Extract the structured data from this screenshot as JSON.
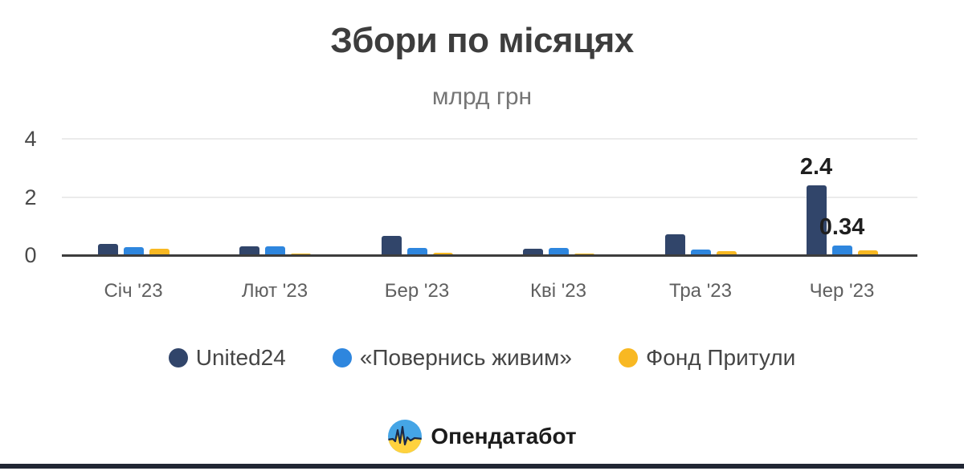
{
  "title": "Збори по місяцях",
  "subtitle": "млрд грн",
  "chart_data": {
    "type": "bar",
    "categories": [
      "Січ '23",
      "Лют '23",
      "Бер '23",
      "Кві '23",
      "Тра '23",
      "Чер '23"
    ],
    "series": [
      {
        "name": "United24",
        "color": "#31456a",
        "values": [
          0.38,
          0.3,
          0.66,
          0.22,
          0.72,
          2.4
        ]
      },
      {
        "name": "«Повернись живим»",
        "color": "#2e86de",
        "values": [
          0.27,
          0.3,
          0.25,
          0.25,
          0.2,
          0.34
        ]
      },
      {
        "name": "Фонд Притули",
        "color": "#f8b822",
        "values": [
          0.22,
          0.05,
          0.07,
          0.05,
          0.13,
          0.16
        ]
      }
    ],
    "data_labels": [
      {
        "series_index": 0,
        "category_index": 5,
        "text": "2.4"
      },
      {
        "series_index": 1,
        "category_index": 5,
        "text": "0.34"
      }
    ],
    "yticks": [
      0,
      2,
      4
    ],
    "ylim": [
      0,
      4.4
    ],
    "grid": "horizontal",
    "legend_position": "bottom"
  },
  "legend": {
    "items": [
      {
        "label": "United24",
        "color": "#31456a"
      },
      {
        "label": "«Повернись живим»",
        "color": "#2e86de"
      },
      {
        "label": "Фонд Притули",
        "color": "#f8b822"
      }
    ]
  },
  "footer": {
    "brand": "Опендатабот"
  },
  "colors": {
    "title": "#3d3d3d",
    "subtitle": "#757575",
    "axis_line": "#3d3d3d",
    "grid_line": "#ebebeb",
    "tick_text": "#5f5f5f",
    "accent_bar": "#212633",
    "logo_blue": "#45a5e6",
    "logo_yellow": "#ffd23e",
    "logo_pulse": "#1b2a4a"
  }
}
